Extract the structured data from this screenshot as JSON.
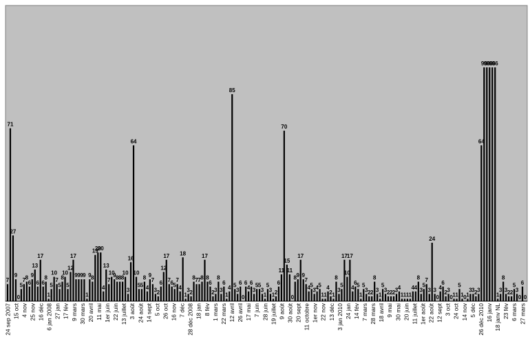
{
  "chart_data": {
    "type": "bar",
    "title": "",
    "xlabel": "",
    "ylabel": "",
    "ylim": [
      0,
      96
    ],
    "grid": false,
    "legend": "none",
    "plot_background": "#c0c0c0",
    "bar_color": "#000000",
    "values": [
      7,
      71,
      27,
      9,
      0,
      5,
      7,
      8,
      6,
      9,
      13,
      6,
      17,
      6,
      8,
      1,
      5,
      10,
      7,
      5,
      8,
      10,
      5,
      12,
      17,
      9,
      9,
      9,
      9,
      1,
      9,
      8,
      19,
      20,
      20,
      4,
      13,
      7,
      10,
      9,
      8,
      8,
      8,
      10,
      3,
      16,
      64,
      10,
      5,
      5,
      8,
      4,
      9,
      7,
      3,
      2,
      6,
      12,
      17,
      7,
      6,
      5,
      7,
      4,
      18,
      1,
      3,
      2,
      8,
      7,
      7,
      8,
      17,
      8,
      6,
      2,
      3,
      8,
      3,
      6,
      1,
      4,
      85,
      5,
      3,
      6,
      0,
      6,
      4,
      6,
      3,
      5,
      5,
      3,
      1,
      5,
      3,
      1,
      2,
      6,
      11,
      70,
      15,
      11,
      0,
      8,
      9,
      17,
      9,
      7,
      4,
      5,
      3,
      4,
      5,
      1,
      1,
      4,
      2,
      1,
      8,
      3,
      5,
      17,
      10,
      17,
      4,
      6,
      5,
      1,
      5,
      3,
      2,
      2,
      8,
      3,
      1,
      5,
      3,
      2,
      2,
      2,
      3,
      4,
      1,
      1,
      1,
      1,
      4,
      4,
      8,
      3,
      5,
      7,
      3,
      24,
      3,
      0,
      4,
      6,
      2,
      3,
      0,
      1,
      1,
      5,
      1,
      0,
      1,
      3,
      3,
      2,
      3,
      64,
      96,
      96,
      96,
      96,
      96,
      1,
      3,
      8,
      3,
      2,
      2,
      5,
      3,
      0,
      6,
      0
    ],
    "x_tick_labels": [
      "24 sep 2007",
      "15 oct",
      "4 nov",
      "25 nov",
      "16 déc",
      "6 jan 2008",
      "27 jan",
      "17 fév",
      "9 mars",
      "30 mars",
      "20 avril",
      "11 mai",
      "1er juin",
      "22 juin",
      "13 juillet",
      "3 août",
      "24 août",
      "14 sept",
      "5 oct",
      "26 oct",
      "16 nov",
      "7 déc",
      "28 déc 2008",
      "18 jan",
      "8 fév",
      "1 mars",
      "22 mars",
      "12 avril",
      "26 avril",
      "17 mai",
      "7 juin",
      "28 juin",
      "19 juillet",
      "9 août",
      "30 août",
      "20 sept",
      "11 octobre",
      "1er nov",
      "22 nov",
      "13 déc",
      "3 jan 2010",
      "24 jan",
      "14 fév",
      "7 mars",
      "28 mars",
      "18 avril",
      "9 mai",
      "30 mai",
      "20 juin",
      "11 juillet",
      "1er août",
      "22 août",
      "12 sept",
      "3 oct",
      "24 oct",
      "14 nov",
      "5 déc",
      "26 déc 2010",
      "16 janv",
      "18 janv NL",
      "23 fév",
      "6 mars",
      "27 mars"
    ]
  }
}
